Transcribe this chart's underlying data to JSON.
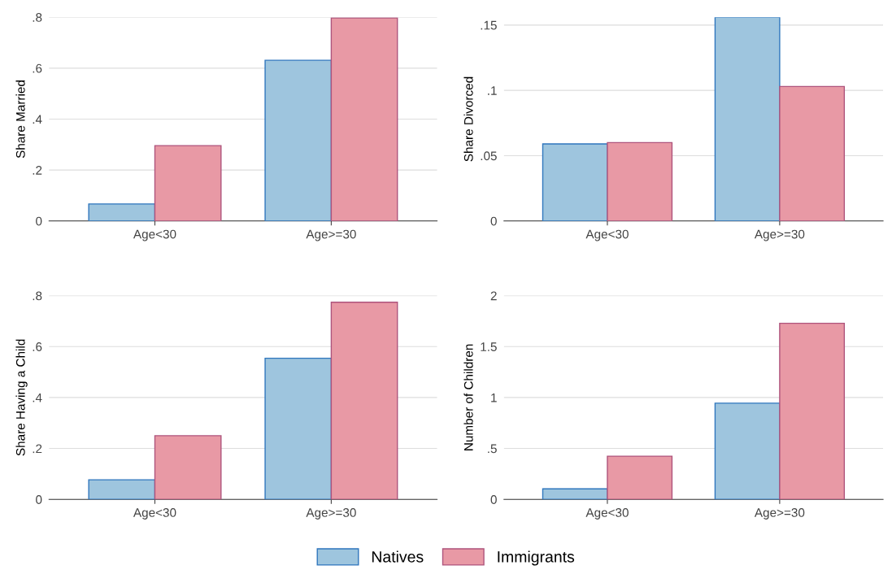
{
  "chart_data": [
    {
      "type": "bar",
      "ylabel": "Share Married",
      "categories": [
        "Age<30",
        "Age>=30"
      ],
      "series": [
        {
          "name": "Natives",
          "color": "#9ec5de",
          "values": [
            0.067,
            0.631
          ]
        },
        {
          "name": "Immigrants",
          "color": "#e899a5",
          "values": [
            0.296,
            0.797
          ]
        }
      ],
      "ylim": [
        0,
        0.8
      ],
      "yticks": [
        0,
        {
          "value": 0.2,
          "label": ".2"
        },
        {
          "value": 0.4,
          "label": ".4"
        },
        {
          "value": 0.6,
          "label": ".6"
        },
        {
          "value": 0.8,
          "label": ".8"
        }
      ],
      "grid": "y",
      "legend": "bottom"
    },
    {
      "type": "bar",
      "ylabel": "Share Divorced",
      "categories": [
        "Age<30",
        "Age>=30"
      ],
      "series": [
        {
          "color": "#9ec5de",
          "values": [
            0.059,
            0.156
          ]
        },
        {
          "color": "#e899a5",
          "values": [
            0.06,
            0.103
          ]
        }
      ],
      "ylim": [
        0,
        0.156
      ],
      "yticks": [
        0,
        {
          "value": 0.05,
          "label": ".05"
        },
        {
          "value": 0.1,
          "label": ".1"
        },
        {
          "value": 0.15,
          "label": ".15"
        }
      ],
      "grid": "y"
    },
    {
      "type": "bar",
      "ylabel": "Share Having a Child",
      "categories": [
        "Age<30",
        "Age>=30"
      ],
      "series": [
        {
          "color": "#9ec5de",
          "values": [
            0.077,
            0.554
          ]
        },
        {
          "color": "#e899a5",
          "values": [
            0.25,
            0.774
          ]
        }
      ],
      "ylim": [
        0,
        0.8
      ],
      "yticks": [
        0,
        {
          "value": 0.2,
          "label": ".2"
        },
        {
          "value": 0.4,
          "label": ".4"
        },
        {
          "value": 0.6,
          "label": ".6"
        },
        {
          "value": 0.8,
          "label": ".8"
        }
      ],
      "grid": "y"
    },
    {
      "type": "bar",
      "ylabel": "Number of Children",
      "categories": [
        "Age<30",
        "Age>=30"
      ],
      "series": [
        {
          "color": "#9ec5de",
          "values": [
            0.104,
            0.944
          ]
        },
        {
          "color": "#e899a5",
          "values": [
            0.424,
            1.728
          ]
        }
      ],
      "ylim": [
        0,
        2
      ],
      "yticks": [
        0,
        {
          "value": 0.5,
          "label": ".5"
        },
        1,
        1.5,
        2
      ],
      "grid": "y"
    }
  ]
}
